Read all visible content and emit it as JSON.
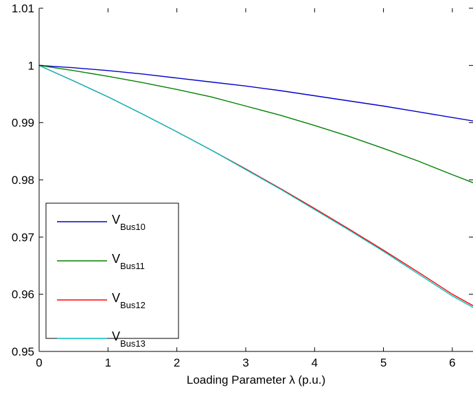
{
  "chart_data": {
    "type": "line",
    "title": "",
    "xlabel": "Loading Parameter λ (p.u.)",
    "ylabel": "",
    "xlim": [
      0,
      6.3
    ],
    "ylim": [
      0.95,
      1.01
    ],
    "xticks": [
      0,
      1,
      2,
      3,
      4,
      5,
      6
    ],
    "yticks": [
      0.95,
      0.96,
      0.97,
      0.98,
      0.99,
      1,
      1.01
    ],
    "xtick_labels": [
      "0",
      "1",
      "2",
      "3",
      "4",
      "5",
      "6"
    ],
    "ytick_labels": [
      "0.95",
      "0.96",
      "0.97",
      "0.98",
      "0.99",
      "1",
      "1.01"
    ],
    "grid": false,
    "legend_position": "bottom-left",
    "x": [
      0,
      0.5,
      1,
      1.5,
      2,
      2.5,
      3,
      3.5,
      4,
      4.5,
      5,
      5.5,
      6,
      6.3
    ],
    "series": [
      {
        "name": "V",
        "subscript": "Bus10",
        "color": "#0000cc",
        "values": [
          1.0,
          0.9996,
          0.9991,
          0.9985,
          0.9978,
          0.9971,
          0.9964,
          0.9956,
          0.9947,
          0.9938,
          0.9929,
          0.9919,
          0.9909,
          0.9903
        ]
      },
      {
        "name": "V",
        "subscript": "Bus11",
        "color": "#007f00",
        "values": [
          1.0,
          0.9991,
          0.9981,
          0.997,
          0.9958,
          0.9945,
          0.9929,
          0.9913,
          0.9895,
          0.9876,
          0.9855,
          0.9833,
          0.9809,
          0.9795
        ]
      },
      {
        "name": "V",
        "subscript": "Bus12",
        "color": "#ff0000",
        "values": [
          1.0,
          0.9973,
          0.9945,
          0.9915,
          0.9884,
          0.9852,
          0.9819,
          0.9785,
          0.975,
          0.9714,
          0.9677,
          0.9639,
          0.96,
          0.958
        ]
      },
      {
        "name": "V",
        "subscript": "Bus13",
        "color": "#00bfbf",
        "values": [
          1.0,
          0.9973,
          0.9945,
          0.9915,
          0.9884,
          0.9852,
          0.9818,
          0.9784,
          0.9748,
          0.9712,
          0.9675,
          0.9636,
          0.9597,
          0.9577
        ]
      }
    ]
  }
}
